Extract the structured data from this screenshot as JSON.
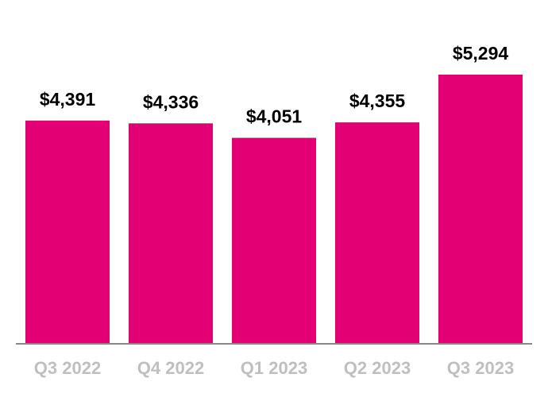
{
  "chart_data": {
    "type": "bar",
    "categories": [
      "Q3 2022",
      "Q4 2022",
      "Q1 2023",
      "Q2 2023",
      "Q3 2023"
    ],
    "values": [
      4391,
      4336,
      4051,
      4355,
      5294
    ],
    "value_labels": [
      "$4,391",
      "$4,336",
      "$4,051",
      "$4,355",
      "$5,294"
    ],
    "color": "#e20074"
  }
}
